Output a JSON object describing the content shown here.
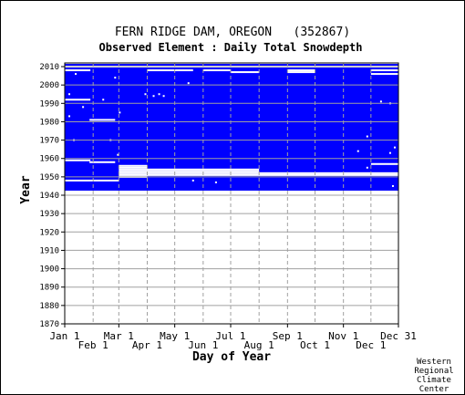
{
  "chart_data": {
    "type": "heatmap",
    "title": "FERN RIDGE DAM, OREGON   (352867)",
    "subtitle": "Observed Element : Daily Total Snowdepth",
    "xlabel": "Day of Year",
    "ylabel": "Year",
    "xlim": [
      1,
      365
    ],
    "ylim": [
      1870,
      2012
    ],
    "x_ticks_top_row": [
      "Jan 1",
      "Mar 1",
      "May 1",
      "Jul 1",
      "Sep 1",
      "Nov 1",
      "Dec 31"
    ],
    "x_ticks_bottom_row": [
      "Feb 1",
      "Apr 1",
      "Jun 1",
      "Aug 1",
      "Oct 1",
      "Dec 1"
    ],
    "x_tick_days_top": [
      1,
      60,
      121,
      182,
      244,
      305,
      365
    ],
    "x_tick_days_bottom": [
      32,
      91,
      152,
      213,
      274,
      335
    ],
    "month_gridline_days": [
      32,
      60,
      91,
      121,
      152,
      182,
      213,
      244,
      274,
      305,
      335
    ],
    "y_ticks": [
      1870,
      1880,
      1890,
      1900,
      1910,
      1920,
      1930,
      1940,
      1950,
      1960,
      1970,
      1980,
      1990,
      2000,
      2010
    ],
    "grid": true,
    "data_color": "#0000ff",
    "period_of_record": [
      1942.5,
      2011.5
    ],
    "legend": "none",
    "gaps": [
      {
        "year": 2010,
        "day_start": 1,
        "day_end": 365
      },
      {
        "year": 2008,
        "day_start": 1,
        "day_end": 28
      },
      {
        "year": 2008,
        "day_start": 91,
        "day_end": 140
      },
      {
        "year": 2008,
        "day_start": 152,
        "day_end": 181
      },
      {
        "year": 2008,
        "day_start": 244,
        "day_end": 273
      },
      {
        "year": 2008,
        "day_start": 335,
        "day_end": 365
      },
      {
        "year": 2007,
        "day_start": 182,
        "day_end": 212
      },
      {
        "year": 2007,
        "day_start": 244,
        "day_end": 273
      },
      {
        "year": 2006,
        "day_start": 335,
        "day_end": 365
      },
      {
        "year": 1992,
        "day_start": 1,
        "day_end": 28
      },
      {
        "year": 1981,
        "day_start": 28,
        "day_end": 55
      },
      {
        "year": 1959,
        "day_start": 1,
        "day_end": 28
      },
      {
        "year": 1958,
        "day_start": 28,
        "day_end": 55
      },
      {
        "year": 1957,
        "day_start": 335,
        "day_end": 365
      },
      {
        "year": 1956,
        "day_start": 60,
        "day_end": 90
      },
      {
        "year": 1955,
        "day_start": 60,
        "day_end": 90
      },
      {
        "year": 1954,
        "day_start": 60,
        "day_end": 212
      },
      {
        "year": 1953,
        "day_start": 60,
        "day_end": 212
      },
      {
        "year": 1952,
        "day_start": 60,
        "day_end": 365
      },
      {
        "year": 1951,
        "day_start": 60,
        "day_end": 365
      },
      {
        "year": 1950,
        "day_start": 60,
        "day_end": 90
      },
      {
        "year": 1948,
        "day_start": 1,
        "day_end": 59
      },
      {
        "year": 1942,
        "day_start": 213,
        "day_end": 243
      }
    ],
    "missing_specks": [
      {
        "year": 2006,
        "day": 12
      },
      {
        "year": 2004,
        "day": 55
      },
      {
        "year": 2001,
        "day": 135
      },
      {
        "year": 1995,
        "day": 5
      },
      {
        "year": 1995,
        "day": 88
      },
      {
        "year": 1995,
        "day": 103
      },
      {
        "year": 1994,
        "day": 97
      },
      {
        "year": 1994,
        "day": 108
      },
      {
        "year": 1992,
        "day": 42
      },
      {
        "year": 1991,
        "day": 345
      },
      {
        "year": 1990,
        "day": 355
      },
      {
        "year": 1988,
        "day": 20
      },
      {
        "year": 1985,
        "day": 60
      },
      {
        "year": 1983,
        "day": 5
      },
      {
        "year": 1972,
        "day": 330
      },
      {
        "year": 1970,
        "day": 10
      },
      {
        "year": 1970,
        "day": 50
      },
      {
        "year": 1966,
        "day": 360
      },
      {
        "year": 1964,
        "day": 320
      },
      {
        "year": 1963,
        "day": 355
      },
      {
        "year": 1962,
        "day": 58
      },
      {
        "year": 1955,
        "day": 330
      },
      {
        "year": 1948,
        "day": 140
      },
      {
        "year": 1947,
        "day": 165
      },
      {
        "year": 1945,
        "day": 358
      }
    ]
  },
  "credit": {
    "line1": "Western",
    "line2": "Regional",
    "line3": "Climate",
    "line4": "Center"
  }
}
